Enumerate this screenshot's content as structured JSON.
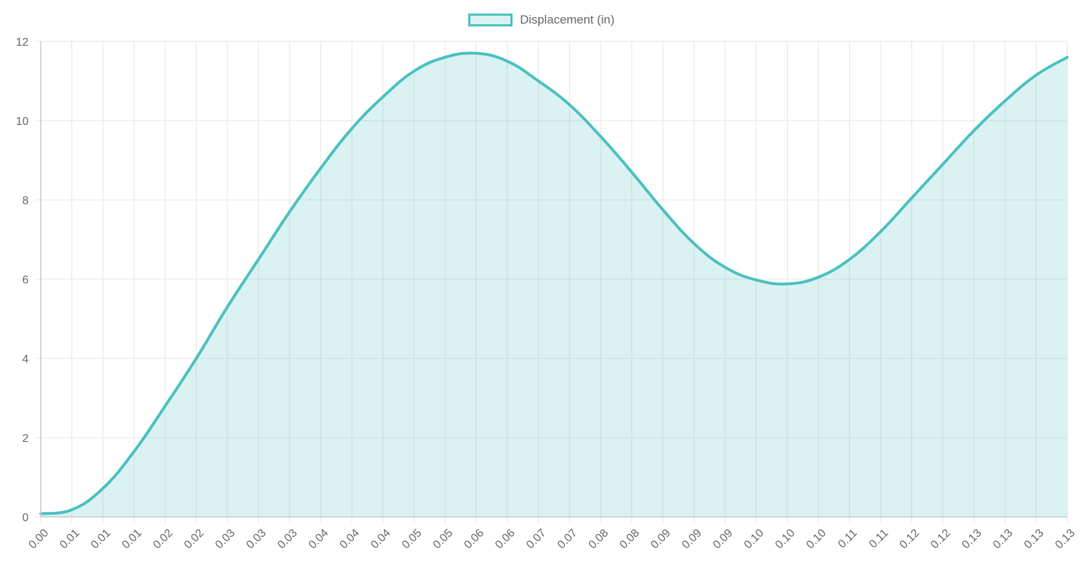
{
  "chart_data": {
    "type": "area",
    "legend": {
      "label": "Displacement (in)",
      "position": "top-center"
    },
    "colors": {
      "line": "#4bc0c0",
      "fill": "rgba(75,192,192,0.2)",
      "grid": "#e5e5e5",
      "text": "#666666"
    },
    "grid": true,
    "xlabel": "",
    "ylabel": "",
    "ylim": [
      0,
      12
    ],
    "y_ticks": [
      "0",
      "2",
      "4",
      "6",
      "8",
      "10",
      "12"
    ],
    "x_tick_labels": [
      "0.00",
      "0.01",
      "0.01",
      "0.01",
      "0.02",
      "0.02",
      "0.03",
      "0.03",
      "0.03",
      "0.04",
      "0.04",
      "0.04",
      "0.05",
      "0.05",
      "0.06",
      "0.06",
      "0.07",
      "0.07",
      "0.08",
      "0.08",
      "0.09",
      "0.09",
      "0.09",
      "0.10",
      "0.10",
      "0.10",
      "0.11",
      "0.11",
      "0.12",
      "0.12",
      "0.13",
      "0.13",
      "0.13",
      "0.13"
    ],
    "x": [
      0,
      1,
      2,
      3,
      4,
      5,
      6,
      7,
      8,
      9,
      10,
      11,
      12,
      13,
      14,
      15,
      16,
      17,
      18,
      19,
      20,
      21,
      22,
      23,
      24,
      25,
      26,
      27,
      28,
      29,
      30,
      31,
      32,
      33
    ],
    "series": [
      {
        "name": "Displacement (in)",
        "values": [
          0.08,
          0.18,
          0.72,
          1.65,
          2.8,
          4.0,
          5.3,
          6.5,
          7.7,
          8.8,
          9.8,
          10.6,
          11.25,
          11.6,
          11.7,
          11.5,
          11.0,
          10.4,
          9.6,
          8.7,
          7.75,
          6.9,
          6.3,
          5.98,
          5.88,
          6.05,
          6.5,
          7.2,
          8.05,
          8.9,
          9.75,
          10.5,
          11.15,
          11.6
        ]
      }
    ]
  }
}
